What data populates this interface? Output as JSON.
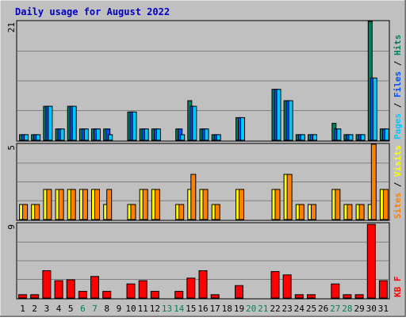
{
  "colors": {
    "background": "#c0c0c0",
    "plot_bg": "#c0c0c0",
    "grid": "#808080",
    "title": "#0000c0",
    "hits": "#008060",
    "files": "#0050ff",
    "pages": "#00c8ff",
    "visits": "#ffff00",
    "sites": "#ff8000",
    "kbytes": "#ff0000",
    "weekend_label": "#00805c",
    "weekday_label": "#000000"
  },
  "chart_data": {
    "type": "bar",
    "title": "Daily usage for August 2022",
    "categories": [
      "1",
      "2",
      "3",
      "4",
      "5",
      "6",
      "7",
      "8",
      "9",
      "10",
      "11",
      "12",
      "13",
      "14",
      "15",
      "16",
      "17",
      "18",
      "19",
      "20",
      "21",
      "22",
      "23",
      "24",
      "25",
      "26",
      "27",
      "28",
      "29",
      "30",
      "31"
    ],
    "weekend_days": [
      "6",
      "7",
      "13",
      "14",
      "20",
      "21",
      "27",
      "28"
    ],
    "panels": [
      {
        "id": "hits",
        "ymax": 21,
        "ymax_label": "21",
        "legend": [
          {
            "text": "Pages",
            "color": "#00c8ff"
          },
          {
            "text": " / ",
            "color": "#000000"
          },
          {
            "text": "Files",
            "color": "#0050ff"
          },
          {
            "text": " / ",
            "color": "#000000"
          },
          {
            "text": "Hits",
            "color": "#008060"
          }
        ],
        "series": [
          {
            "name": "Hits",
            "color": "#008060",
            "values": [
              1,
              1,
              6,
              2,
              6,
              2,
              2,
              2,
              0,
              5,
              2,
              2,
              0,
              2,
              7,
              2,
              1,
              0,
              4,
              0,
              0,
              9,
              7,
              1,
              1,
              0,
              3,
              1,
              1,
              21,
              2
            ]
          },
          {
            "name": "Files",
            "color": "#0050ff",
            "values": [
              1,
              1,
              6,
              2,
              6,
              2,
              2,
              2,
              0,
              5,
              2,
              2,
              0,
              2,
              6,
              2,
              1,
              0,
              4,
              0,
              0,
              9,
              7,
              1,
              1,
              0,
              2,
              1,
              1,
              11,
              2
            ]
          },
          {
            "name": "Pages",
            "color": "#00c8ff",
            "values": [
              1,
              1,
              6,
              2,
              6,
              2,
              2,
              1,
              0,
              5,
              2,
              2,
              0,
              1,
              6,
              2,
              1,
              0,
              4,
              0,
              0,
              9,
              7,
              1,
              1,
              0,
              2,
              1,
              1,
              11,
              2
            ]
          }
        ]
      },
      {
        "id": "visits",
        "ymax": 5,
        "ymax_label": "5",
        "legend": [
          {
            "text": "Sites",
            "color": "#ff8000"
          },
          {
            "text": " / ",
            "color": "#000000"
          },
          {
            "text": "Visits",
            "color": "#ffff00"
          }
        ],
        "series": [
          {
            "name": "Visits",
            "color": "#ffff00",
            "values": [
              1,
              1,
              2,
              2,
              2,
              2,
              2,
              1,
              0,
              1,
              2,
              2,
              0,
              1,
              2,
              2,
              1,
              0,
              2,
              0,
              0,
              2,
              3,
              1,
              1,
              0,
              2,
              1,
              1,
              1,
              2
            ]
          },
          {
            "name": "Sites",
            "color": "#ff8000",
            "values": [
              1,
              1,
              2,
              2,
              2,
              2,
              2,
              2,
              0,
              1,
              2,
              2,
              0,
              1,
              3,
              2,
              1,
              0,
              2,
              0,
              0,
              2,
              3,
              1,
              1,
              0,
              2,
              1,
              1,
              5,
              2
            ]
          }
        ]
      },
      {
        "id": "kbytes",
        "ymax": 9,
        "ymax_label": "9",
        "legend": [
          {
            "text": "KB F",
            "color": "#ff0000"
          }
        ],
        "series": [
          {
            "name": "KB F",
            "color": "#ff0000",
            "values": [
              0.4,
              0.4,
              3.3,
              2.1,
              2.2,
              0.8,
              2.6,
              0.8,
              0,
              1.7,
              2.1,
              0.8,
              0,
              0.8,
              2.4,
              3.3,
              0.4,
              0,
              1.5,
              0,
              0,
              3.2,
              2.8,
              0.4,
              0.4,
              0,
              1.7,
              0.4,
              0.4,
              8.9,
              2.1
            ]
          }
        ]
      }
    ]
  }
}
